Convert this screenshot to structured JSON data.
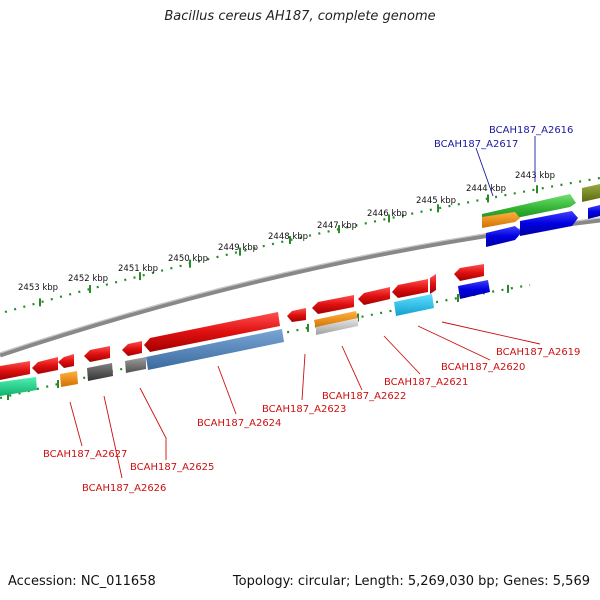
{
  "title": "Bacillus cereus AH187, complete genome",
  "accession": "Accession: NC_011658",
  "topology": "Topology: circular; Length: 5,269,030 bp; Genes: 5,569",
  "ticks": [
    "2453 kbp",
    "2452 kbp",
    "2451 kbp",
    "2450 kbp",
    "2449 kbp",
    "2448 kbp",
    "2447 kbp",
    "2446 kbp",
    "2445 kbp",
    "2444 kbp",
    "2443 kbp"
  ],
  "labels": {
    "a2616": "BCAH187_A2616",
    "a2617": "BCAH187_A2617",
    "a2619": "BCAH187_A2619",
    "a2620": "BCAH187_A2620",
    "a2621": "BCAH187_A2621",
    "a2622": "BCAH187_A2622",
    "a2623": "BCAH187_A2623",
    "a2624": "BCAH187_A2624",
    "a2625": "BCAH187_A2625",
    "a2626": "BCAH187_A2626",
    "a2627": "BCAH187_A2627"
  },
  "colors": {
    "forward_gene": "#2020e0",
    "reverse_gene": "#e81010",
    "backbone": "#7a7a7a",
    "tick": "#2a8a2a",
    "forward_label": "#1a1aa0",
    "reverse_label": "#cc1010"
  }
}
